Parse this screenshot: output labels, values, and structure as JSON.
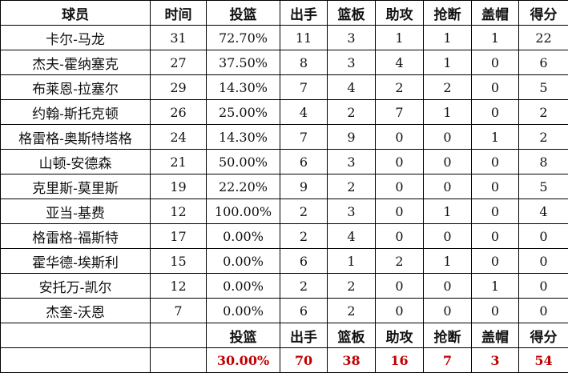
{
  "headers": [
    "球员",
    "时间",
    "投篮",
    "出手",
    "篮板",
    "助攻",
    "抢断",
    "盖帽",
    "得分"
  ],
  "rows": [
    [
      "卡尔-马龙",
      "31",
      "72.70%",
      "11",
      "3",
      "1",
      "1",
      "1",
      "22"
    ],
    [
      "杰夫-霍纳塞克",
      "27",
      "37.50%",
      "8",
      "3",
      "4",
      "1",
      "0",
      "6"
    ],
    [
      "布莱恩-拉塞尔",
      "29",
      "14.30%",
      "7",
      "4",
      "2",
      "2",
      "0",
      "5"
    ],
    [
      "约翰-斯托克顿",
      "26",
      "25.00%",
      "4",
      "2",
      "7",
      "1",
      "0",
      "2"
    ],
    [
      "格雷格-奥斯特塔格",
      "24",
      "14.30%",
      "7",
      "9",
      "0",
      "0",
      "1",
      "2"
    ],
    [
      "山顿-安德森",
      "21",
      "50.00%",
      "6",
      "3",
      "0",
      "0",
      "0",
      "8"
    ],
    [
      "克里斯-莫里斯",
      "19",
      "22.20%",
      "9",
      "2",
      "0",
      "0",
      "0",
      "5"
    ],
    [
      "亚当-基费",
      "12",
      "100.00%",
      "2",
      "3",
      "0",
      "1",
      "0",
      "4"
    ],
    [
      "格雷格-福斯特",
      "17",
      "0.00%",
      "2",
      "4",
      "0",
      "0",
      "0",
      "0"
    ],
    [
      "霍华德-埃斯利",
      "15",
      "0.00%",
      "6",
      "1",
      "2",
      "1",
      "0",
      "0"
    ],
    [
      "安托万-凯尔",
      "12",
      "0.00%",
      "2",
      "2",
      "0",
      "0",
      "1",
      "0"
    ],
    [
      "杰奎-沃恩",
      "7",
      "0.00%",
      "6",
      "2",
      "0",
      "0",
      "0",
      "0"
    ]
  ],
  "totals_header": [
    "投篮",
    "出手",
    "篮板",
    "助攻",
    "抢断",
    "盖帽",
    "得分"
  ],
  "totals": [
    "30.00%",
    "70",
    "38",
    "16",
    "7",
    "3",
    "54"
  ],
  "colors": {
    "totals": "#c00000"
  }
}
